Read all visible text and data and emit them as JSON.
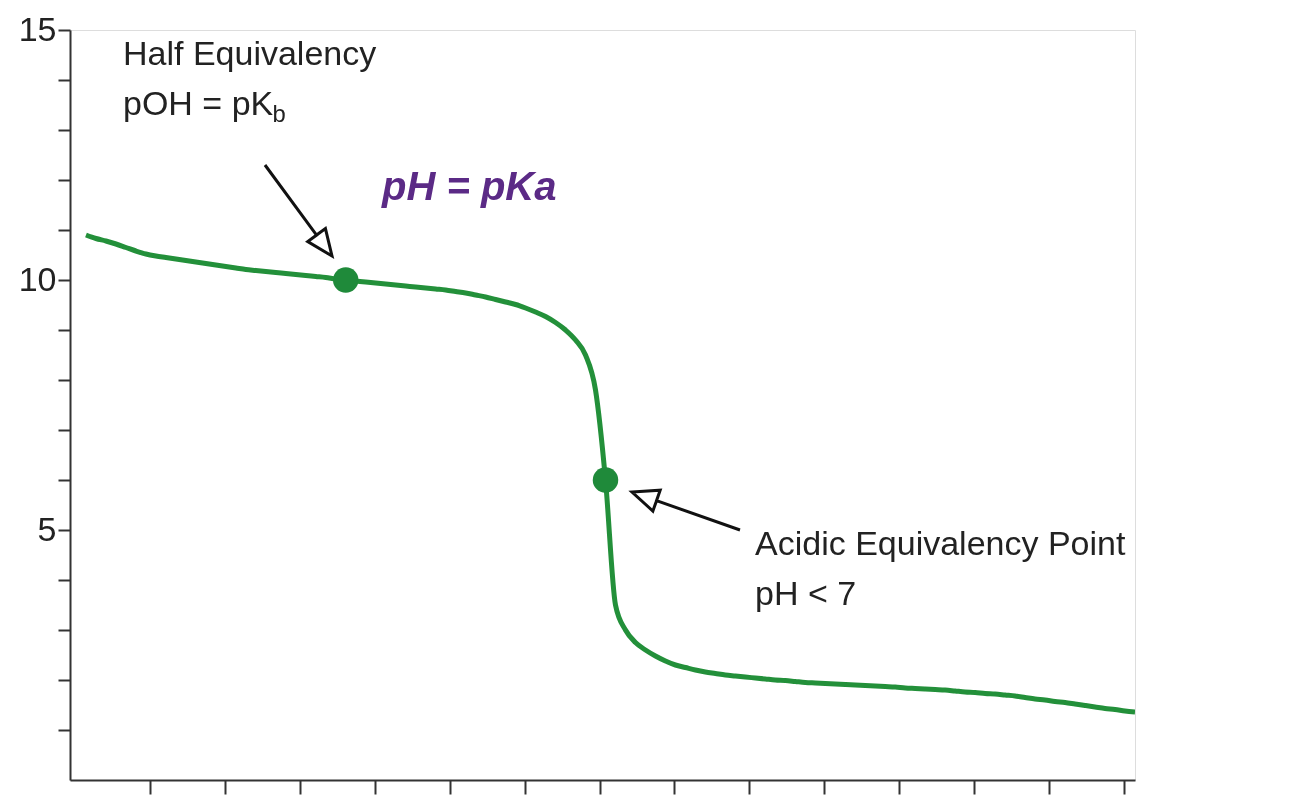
{
  "chart_data": {
    "type": "line",
    "categories": [
      null,
      null,
      null,
      null,
      null,
      null,
      null,
      null,
      null,
      null,
      null,
      null,
      null,
      null,
      null,
      null,
      null,
      null,
      null,
      null,
      null,
      null,
      null,
      null,
      null,
      null,
      null,
      null,
      null,
      null,
      null,
      null,
      null,
      null,
      null,
      null,
      null,
      null,
      null,
      null,
      null,
      null,
      null,
      null,
      null,
      null,
      null,
      null,
      null,
      null,
      null,
      null,
      null,
      null,
      null,
      null,
      null,
      null,
      null,
      null,
      null,
      null,
      null,
      null,
      null,
      null,
      null,
      null,
      null,
      null,
      null,
      null,
      null,
      null,
      null,
      null,
      null,
      null,
      null,
      null,
      null,
      null,
      null,
      null,
      null,
      null,
      null,
      null,
      null,
      null,
      null,
      null,
      null,
      null,
      null,
      null,
      null,
      null,
      null,
      null,
      null,
      null,
      null,
      null,
      null,
      null
    ],
    "series": [
      {
        "color": "#23903a",
        "values": [
          10.9,
          10.83,
          10.78,
          10.72,
          10.65,
          10.58,
          10.52,
          10.48,
          10.45,
          10.42,
          10.39,
          10.36,
          10.33,
          10.3,
          10.27,
          10.24,
          10.21,
          10.19,
          10.17,
          10.15,
          10.13,
          10.11,
          10.09,
          10.07,
          10.05,
          10.02,
          10.0,
          9.98,
          9.96,
          9.94,
          9.92,
          9.9,
          9.88,
          9.86,
          9.84,
          9.82,
          9.8,
          9.77,
          9.74,
          9.7,
          9.66,
          9.61,
          9.56,
          9.51,
          9.44,
          9.36,
          9.27,
          9.15,
          9.0,
          8.8,
          8.5,
          7.8,
          6.0,
          3.5,
          3.0,
          2.75,
          2.6,
          2.48,
          2.38,
          2.3,
          2.25,
          2.2,
          2.16,
          2.13,
          2.1,
          2.08,
          2.06,
          2.04,
          2.02,
          2.0,
          1.99,
          1.97,
          1.95,
          1.94,
          1.93,
          1.92,
          1.91,
          1.9,
          1.89,
          1.88,
          1.87,
          1.86,
          1.84,
          1.83,
          1.82,
          1.81,
          1.8,
          1.78,
          1.76,
          1.75,
          1.73,
          1.72,
          1.7,
          1.68,
          1.65,
          1.62,
          1.6,
          1.57,
          1.55,
          1.52,
          1.49,
          1.46,
          1.43,
          1.41,
          1.38,
          1.36
        ]
      },
      {
        "type": "scatter",
        "color": "#1f8a3a",
        "marker": "circle",
        "values": [
          null,
          null,
          null,
          null,
          null,
          null,
          null,
          null,
          null,
          null,
          null,
          null,
          null,
          null,
          null,
          null,
          null,
          null,
          null,
          null,
          null,
          null,
          null,
          null,
          null,
          null,
          10.0,
          null,
          null,
          null,
          null,
          null,
          null,
          null,
          null,
          null,
          null,
          null,
          null,
          null,
          null,
          null,
          null,
          null,
          null,
          null,
          null,
          null,
          null,
          null,
          null,
          null,
          6.0,
          null,
          null,
          null,
          null,
          null,
          null,
          null,
          null,
          null,
          null,
          null,
          null,
          null,
          null,
          null,
          null,
          null,
          null,
          null,
          null,
          null,
          null,
          null,
          null,
          null,
          null,
          null,
          null,
          null,
          null,
          null,
          null,
          null,
          null,
          null,
          null,
          null,
          null,
          null,
          null,
          null,
          null,
          null,
          null,
          null,
          null,
          null,
          null,
          null,
          null,
          null,
          null,
          null
        ]
      }
    ],
    "ylim": [
      0,
      15
    ],
    "yticks": [
      {
        "value": 1,
        "label": null
      },
      {
        "value": 2,
        "label": null
      },
      {
        "value": 3,
        "label": null
      },
      {
        "value": 4,
        "label": null
      },
      5,
      {
        "value": 6,
        "label": null
      },
      {
        "value": 7,
        "label": null
      },
      {
        "value": 8,
        "label": null
      },
      {
        "value": 9,
        "label": null
      },
      10,
      {
        "value": 11,
        "label": null
      },
      {
        "value": 12,
        "label": null
      },
      {
        "value": 13,
        "label": null
      },
      {
        "value": 14,
        "label": null
      },
      15
    ],
    "tick_labels": "y",
    "grid": false,
    "annotations": [
      "Half Equivalency\npOH = pK$_{b}$",
      "pH = pKa",
      "Acidic Equivalency Point\npH < 7"
    ]
  }
}
